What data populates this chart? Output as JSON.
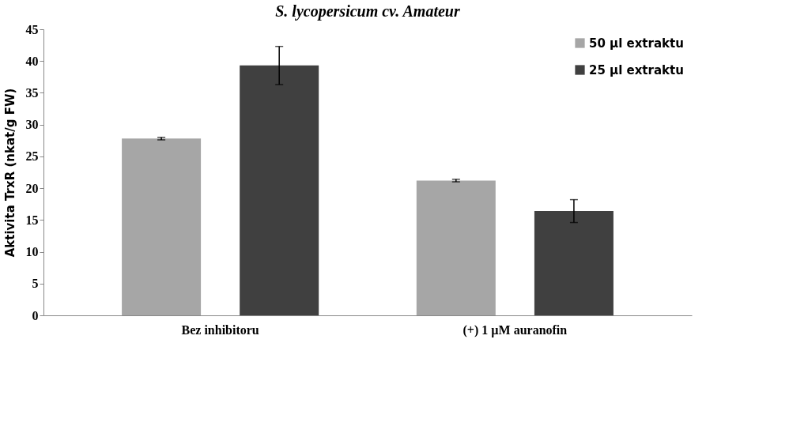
{
  "chart_data": {
    "type": "bar",
    "title": "S. lycopersicum cv. Amateur",
    "ylabel": "Aktivita TrxR (nkat/g FW)",
    "categories": [
      "Bez inhibitoru",
      "(+) 1 µM auranofin"
    ],
    "series": [
      {
        "name": "50 µl extraktu",
        "color": "#a6a6a6",
        "values": [
          27.8,
          21.2
        ],
        "errors": [
          0.2,
          0.2
        ]
      },
      {
        "name": "25 µl extraktu",
        "color": "#404040",
        "values": [
          39.3,
          16.4
        ],
        "errors": [
          3.0,
          1.8
        ]
      }
    ],
    "ylim": [
      0,
      45
    ],
    "yticks": [
      0,
      5,
      10,
      15,
      20,
      25,
      30,
      35,
      40,
      45
    ],
    "grid": false,
    "legend": "top right"
  }
}
